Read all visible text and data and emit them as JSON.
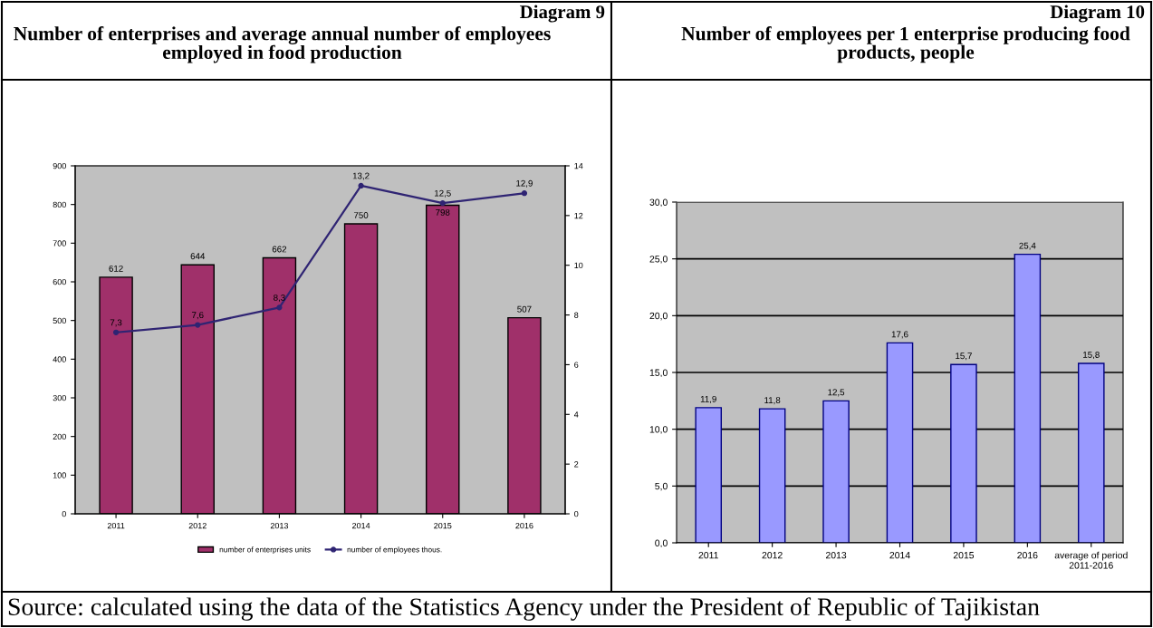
{
  "chart_data": [
    {
      "type": "bar",
      "title": "Number of enterprises and average annual number of employees employed in food production",
      "annotations": [
        "Diagram 9",
        "Source: calculated using the data of the Statistics Agency under the President of Republic of Tajikistan"
      ],
      "categories": [
        "2011",
        "2012",
        "2013",
        "2014",
        "2015",
        "2016"
      ],
      "series": [
        {
          "name": "number of enterprises units",
          "type": "bar",
          "color": "#a0306a",
          "values": [
            612,
            644,
            662,
            750,
            798,
            507
          ],
          "value_labels": [
            "612",
            "644",
            "662",
            "750",
            "798",
            "507"
          ]
        },
        {
          "name": "number of employees thous.",
          "type": "line",
          "axis": "y2",
          "color": "#2f2473",
          "values": [
            7.3,
            7.6,
            8.3,
            13.2,
            12.5,
            12.9
          ],
          "value_labels": [
            "7,3",
            "7,6",
            "8,3",
            "13,2",
            "12,5",
            "12,9"
          ]
        }
      ],
      "ylim": [
        0,
        900
      ],
      "yticks": [
        0,
        100,
        200,
        300,
        400,
        500,
        600,
        700,
        800,
        900
      ],
      "y2lim": [
        0,
        14
      ],
      "y2ticks": [
        0,
        2,
        4,
        6,
        8,
        10,
        12,
        14
      ],
      "grid": false,
      "legend": "bottom",
      "marker": "circle"
    },
    {
      "type": "bar",
      "title": "Number of employees per 1 enterprise producing food products, people",
      "annotations": [
        "Diagram 10"
      ],
      "categories": [
        "2011",
        "2012",
        "2013",
        "2014",
        "2015",
        "2016",
        "average of period 2011-2016"
      ],
      "values": [
        11.9,
        11.8,
        12.5,
        17.6,
        15.7,
        25.4,
        15.8
      ],
      "value_labels": [
        "11,9",
        "11,8",
        "12,5",
        "17,6",
        "15,7",
        "25,4",
        "15,8"
      ],
      "color": "#9999ff",
      "ylim": [
        0,
        30
      ],
      "yticks": [
        {
          "value": 0,
          "label": "0,0"
        },
        {
          "value": 5,
          "label": "5,0"
        },
        {
          "value": 10,
          "label": "10,0"
        },
        {
          "value": 15,
          "label": "15,0"
        },
        {
          "value": 20,
          "label": "20,0"
        },
        {
          "value": 25,
          "label": "25,0"
        },
        {
          "value": 30,
          "label": "30,0"
        }
      ],
      "grid": "y"
    }
  ]
}
